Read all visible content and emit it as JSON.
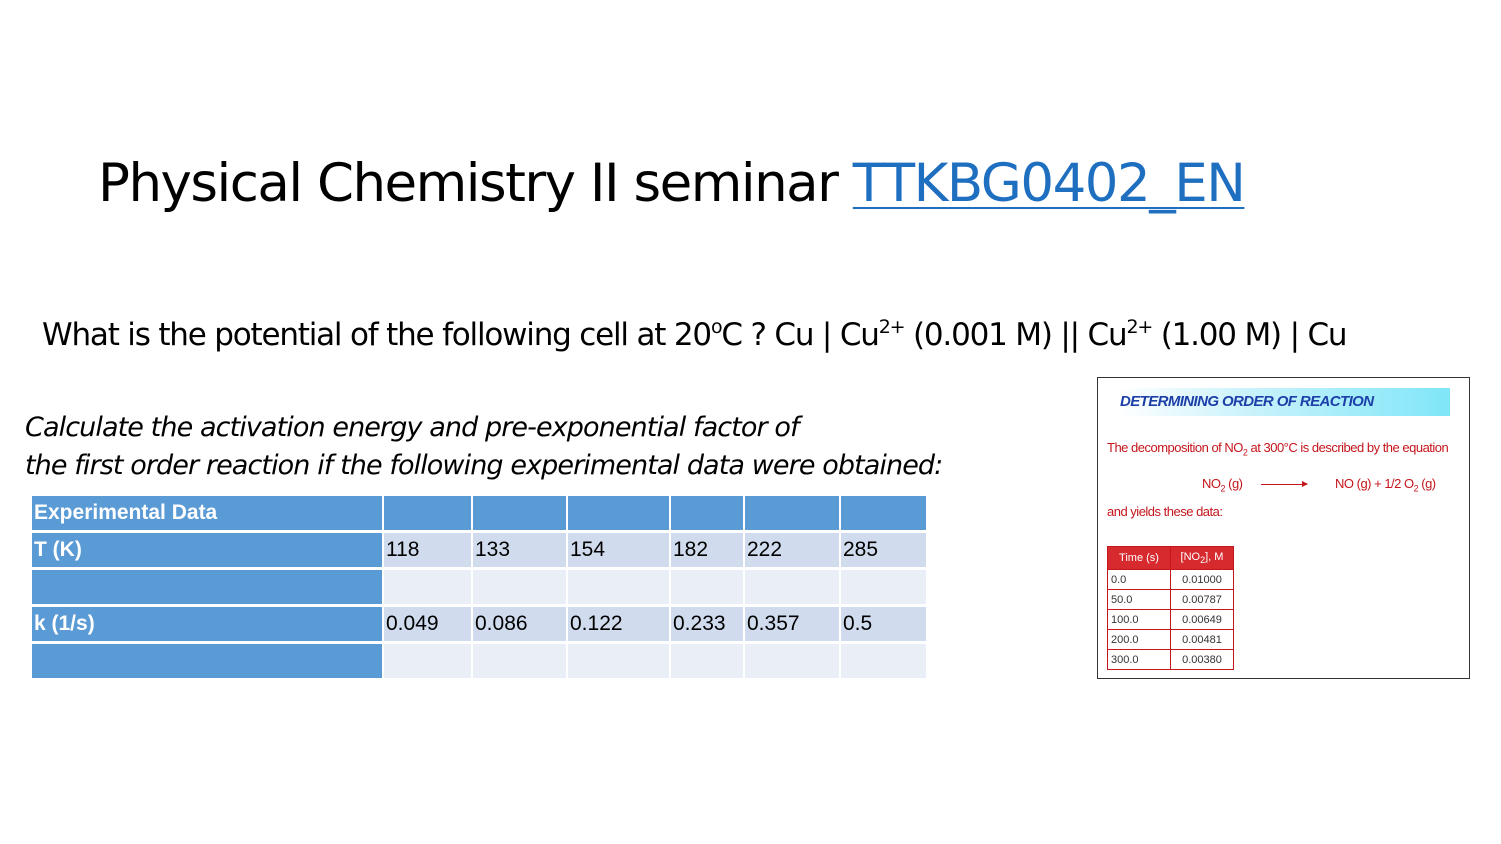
{
  "slide": {
    "title_text": "Physical Chemistry II seminar ",
    "title_link": "TTKBG0402_EN",
    "question": {
      "part1": "What is the potential of the following cell at 20",
      "deg": "o",
      "part2": "C ?  Cu | Cu",
      "charge1": "2+",
      "part3": " (0.001 M) || Cu",
      "charge2": "2+",
      "part4": " (1.00  M) | Cu"
    },
    "task_line1": "Calculate the activation energy and pre-exponential factor of",
    "task_line2": "the first order reaction if the following experimental data were obtained:",
    "table": {
      "header": "Experimental Data",
      "row_T_label": "T (K)",
      "row_T_values": [
        "118",
        "133",
        "154",
        "182",
        "222",
        "285"
      ],
      "row_k_label": "k (1/s)",
      "row_k_values": [
        "0.049",
        "0.086",
        "0.122",
        "0.233",
        "0.357",
        "0.5"
      ]
    },
    "inset": {
      "heading": "DETERMINING ORDER OF REACTION",
      "line1_a": "The decomposition of NO",
      "line1_sub": "2",
      "line1_b": " at 300°C is described by the equation",
      "eq_left_a": "NO",
      "eq_left_sub": "2",
      "eq_left_b": " (g)",
      "eq_right_a": "NO (g) + 1/2 O",
      "eq_right_sub": "2",
      "eq_right_b": " (g)",
      "line2": "and yields these data:",
      "col_time": "Time (s)",
      "col_conc_a": "[NO",
      "col_conc_sub": "2",
      "col_conc_b": "], M",
      "rows": [
        {
          "time": "0.0",
          "conc": "0.01000"
        },
        {
          "time": "50.0",
          "conc": "0.00787"
        },
        {
          "time": "100.0",
          "conc": "0.00649"
        },
        {
          "time": "200.0",
          "conc": "0.00481"
        },
        {
          "time": "300.0",
          "conc": "0.00380"
        }
      ]
    },
    "colors": {
      "link": "#1f6fc0",
      "table_header": "#5b9bd5",
      "table_band": "#d0dcee",
      "table_plain": "#e9eef7",
      "inset_red": "#c4161c",
      "inset_heading": "#1c3fa8"
    }
  }
}
